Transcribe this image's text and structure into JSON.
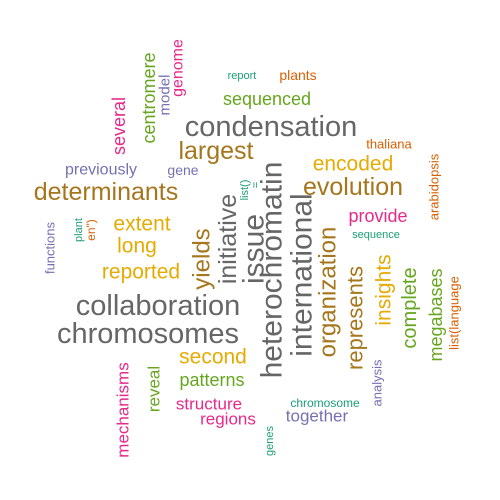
{
  "colors": {
    "teal": "#1b9e77",
    "orange": "#d95f02",
    "purple": "#7570b3",
    "magenta": "#e7298a",
    "green": "#66a61e",
    "gold": "#e6ab02",
    "brown": "#a6761d",
    "gray": "#666666"
  },
  "words": [
    {
      "text": "condensation",
      "color": "#666666"
    },
    {
      "text": "collaboration",
      "color": "#666666"
    },
    {
      "text": "chromosomes",
      "color": "#666666"
    },
    {
      "text": "heterochromatin",
      "color": "#666666"
    },
    {
      "text": "international",
      "color": "#666666"
    },
    {
      "text": "issue",
      "color": "#666666"
    },
    {
      "text": "initiative",
      "color": "#666666"
    },
    {
      "text": "determinants",
      "color": "#a6761d"
    },
    {
      "text": "evolution",
      "color": "#a6761d"
    },
    {
      "text": "organization",
      "color": "#a6761d"
    },
    {
      "text": "largest",
      "color": "#a6761d"
    },
    {
      "text": "yields",
      "color": "#a6761d"
    },
    {
      "text": "represents",
      "color": "#a6761d"
    },
    {
      "text": "encoded",
      "color": "#e6ab02"
    },
    {
      "text": "extent",
      "color": "#e6ab02"
    },
    {
      "text": "long",
      "color": "#e6ab02"
    },
    {
      "text": "reported",
      "color": "#e6ab02"
    },
    {
      "text": "second",
      "color": "#e6ab02"
    },
    {
      "text": "insights",
      "color": "#e6ab02"
    },
    {
      "text": "sequenced",
      "color": "#66a61e"
    },
    {
      "text": "patterns",
      "color": "#66a61e"
    },
    {
      "text": "reveal",
      "color": "#66a61e"
    },
    {
      "text": "complete",
      "color": "#66a61e"
    },
    {
      "text": "megabases",
      "color": "#66a61e"
    },
    {
      "text": "centromere",
      "color": "#66a61e"
    },
    {
      "text": "genome",
      "color": "#e7298a"
    },
    {
      "text": "several",
      "color": "#e7298a"
    },
    {
      "text": "provide",
      "color": "#e7298a"
    },
    {
      "text": "structure",
      "color": "#e7298a"
    },
    {
      "text": "regions",
      "color": "#e7298a"
    },
    {
      "text": "mechanisms",
      "color": "#e7298a"
    },
    {
      "text": "model",
      "color": "#7570b3"
    },
    {
      "text": "previously",
      "color": "#7570b3"
    },
    {
      "text": "gene",
      "color": "#7570b3"
    },
    {
      "text": "functions",
      "color": "#7570b3"
    },
    {
      "text": "together",
      "color": "#7570b3"
    },
    {
      "text": "analysis",
      "color": "#7570b3"
    },
    {
      "text": "plants",
      "color": "#d95f02"
    },
    {
      "text": "thaliana",
      "color": "#d95f02"
    },
    {
      "text": "arabidopsis",
      "color": "#d95f02"
    },
    {
      "text": "list(language",
      "color": "#d95f02"
    },
    {
      "text": "en\")",
      "color": "#d95f02"
    },
    {
      "text": "report",
      "color": "#1b9e77"
    },
    {
      "text": "list()",
      "color": "#1b9e77"
    },
    {
      "text": "=",
      "color": "#1b9e77"
    },
    {
      "text": "sequence",
      "color": "#1b9e77"
    },
    {
      "text": "plant",
      "color": "#1b9e77"
    },
    {
      "text": "chromosome",
      "color": "#1b9e77"
    },
    {
      "text": "genes",
      "color": "#1b9e77"
    }
  ]
}
